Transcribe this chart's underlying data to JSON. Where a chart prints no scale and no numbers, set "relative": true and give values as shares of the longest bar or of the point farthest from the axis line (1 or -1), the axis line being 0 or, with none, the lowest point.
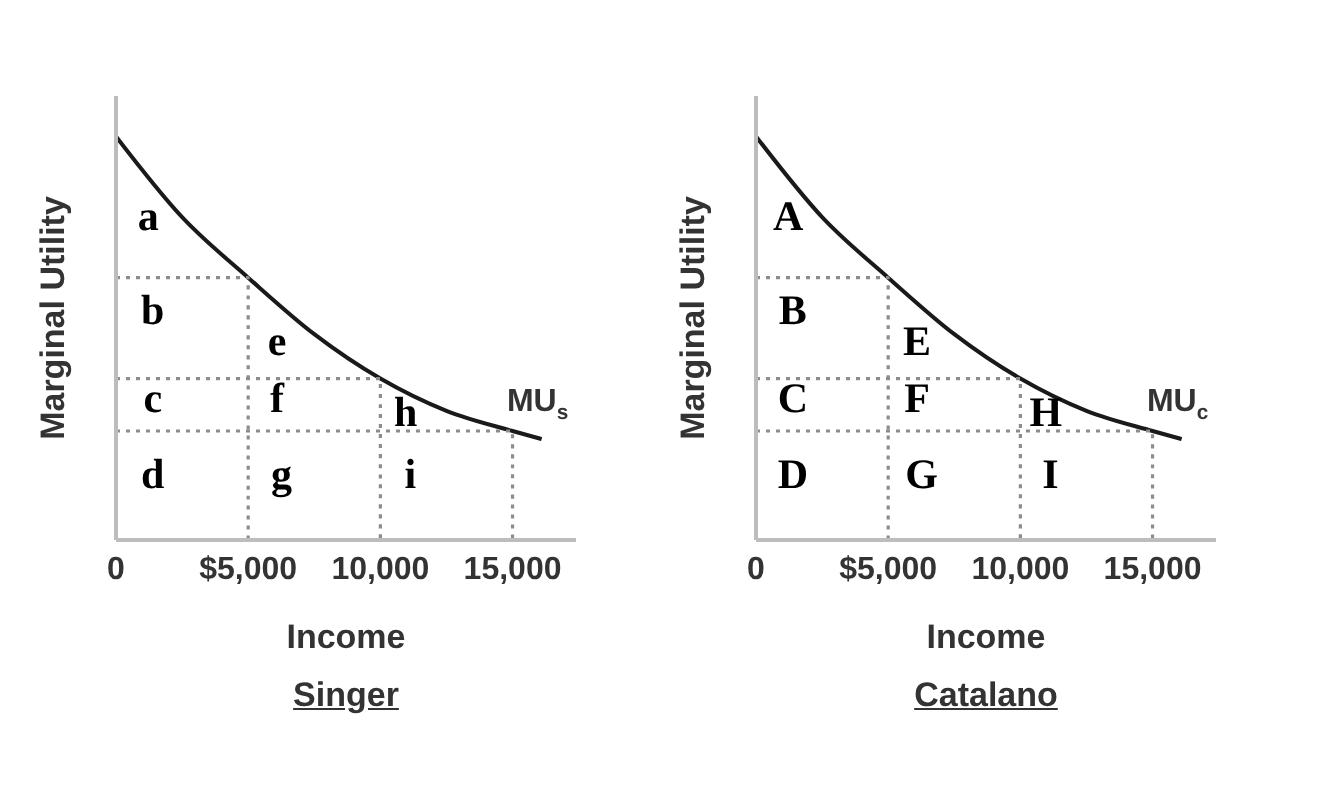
{
  "chart_data": [
    {
      "type": "line",
      "title": "Singer",
      "xlabel": "Income",
      "ylabel": "Marginal Utility",
      "relative": true,
      "tick_labels": "x",
      "marker": "none",
      "xlim": [
        0,
        17400
      ],
      "xticks": [
        0,
        {
          "value": 5000,
          "label": "$5,000"
        },
        {
          "value": 10000,
          "label": "10,000"
        },
        {
          "value": 15000,
          "label": "15,000"
        }
      ],
      "series": [
        {
          "name": "MU$_{s}$",
          "color": "#1a1a1a",
          "line_style": "solid",
          "x": [
            0,
            2500,
            5000,
            7500,
            10000,
            12500,
            15000,
            16100
          ],
          "values": [
            1,
            0.8,
            0.65,
            0.51,
            0.4,
            0.32,
            0.27,
            0.25
          ]
        },
        {
          "color": "#8c8c8c",
          "line_style": "dotted",
          "x": [
            0,
            5000,
            5000
          ],
          "values": [
            0.65,
            0.65,
            0
          ]
        },
        {
          "color": "#8c8c8c",
          "line_style": "dotted",
          "x": [
            0,
            10000,
            10000
          ],
          "values": [
            0.4,
            0.4,
            0
          ]
        },
        {
          "color": "#8c8c8c",
          "line_style": "dotted",
          "x": [
            0,
            15000,
            15000
          ],
          "values": [
            0.27,
            0.27,
            0
          ]
        }
      ],
      "annotations": [
        "a",
        "b",
        "e",
        "c",
        "f",
        "h",
        "d",
        "g",
        "i"
      ]
    },
    {
      "type": "line",
      "title": "Catalano",
      "xlabel": "Income",
      "ylabel": "Marginal Utility",
      "relative": true,
      "tick_labels": "x",
      "marker": "none",
      "xlim": [
        0,
        17400
      ],
      "xticks": [
        0,
        {
          "value": 5000,
          "label": "$5,000"
        },
        {
          "value": 10000,
          "label": "10,000"
        },
        {
          "value": 15000,
          "label": "15,000"
        }
      ],
      "series": [
        {
          "name": "MU$_{c}$",
          "color": "#1a1a1a",
          "line_style": "solid",
          "x": [
            0,
            2500,
            5000,
            7500,
            10000,
            12500,
            15000,
            16100
          ],
          "values": [
            1,
            0.8,
            0.65,
            0.51,
            0.4,
            0.32,
            0.27,
            0.25
          ]
        },
        {
          "color": "#8c8c8c",
          "line_style": "dotted",
          "x": [
            0,
            5000,
            5000
          ],
          "values": [
            0.65,
            0.65,
            0
          ]
        },
        {
          "color": "#8c8c8c",
          "line_style": "dotted",
          "x": [
            0,
            10000,
            10000
          ],
          "values": [
            0.4,
            0.4,
            0
          ]
        },
        {
          "color": "#8c8c8c",
          "line_style": "dotted",
          "x": [
            0,
            15000,
            15000
          ],
          "values": [
            0.27,
            0.27,
            0
          ]
        }
      ],
      "annotations": [
        "A",
        "B",
        "E",
        "C",
        "F",
        "H",
        "D",
        "G",
        "I"
      ]
    }
  ]
}
